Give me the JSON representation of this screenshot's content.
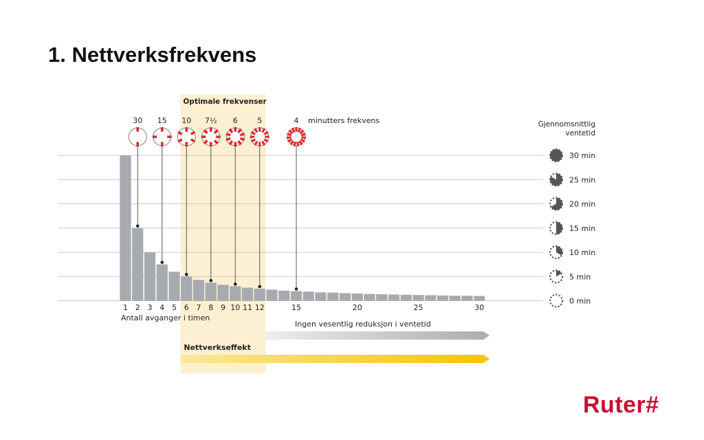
{
  "slide": {
    "title": "1. Nettverksfrekvens"
  },
  "brand": {
    "logo_text": "Ruter#",
    "color": "#c8102e"
  },
  "colors": {
    "bar": "#a7abaf",
    "optimal_band": "#fdf0d2",
    "grid": "#c8c8c8",
    "accent_red": "#e2272a",
    "network_arrow": "#f5c400",
    "no_reduction_arrow": "#b9bcbf"
  },
  "chart_data": {
    "type": "bar",
    "title": "",
    "xlabel": "Antall avganger i timen",
    "ylabel": "Gjennomsnittlig ventetid",
    "x": [
      1,
      2,
      3,
      4,
      5,
      6,
      7,
      8,
      9,
      10,
      11,
      12,
      13,
      14,
      15,
      16,
      17,
      18,
      19,
      20,
      21,
      22,
      23,
      24,
      25,
      26,
      27,
      28,
      29,
      30
    ],
    "values": [
      30,
      15,
      10,
      7.5,
      6,
      5,
      4.3,
      3.75,
      3.3,
      3,
      2.7,
      2.5,
      2.3,
      2.1,
      2,
      1.9,
      1.75,
      1.7,
      1.6,
      1.5,
      1.4,
      1.35,
      1.3,
      1.25,
      1.2,
      1.15,
      1.1,
      1.05,
      1.03,
      1
    ],
    "x_tick_labels": [
      "1",
      "2",
      "3",
      "4",
      "5",
      "6",
      "7",
      "8",
      "9",
      "10",
      "11",
      "12",
      "15",
      "20",
      "25",
      "30"
    ],
    "ylim": [
      0,
      30
    ],
    "y_tick_labels": [
      "30 min",
      "25 min",
      "20 min",
      "15 min",
      "10 min",
      "5 min",
      "0 min"
    ],
    "y_axis_title": [
      "Gjennomsnittlig",
      "ventetid"
    ],
    "grid": true,
    "optimal_band": {
      "label": "Optimale frekvenser",
      "from": 6,
      "to": 12
    },
    "frequency_markers": {
      "caption": "minutters frekvens",
      "items": [
        {
          "label": "30",
          "departures": 2
        },
        {
          "label": "15",
          "departures": 4
        },
        {
          "label": "10",
          "departures": 6
        },
        {
          "label": "7½",
          "departures": 8
        },
        {
          "label": "6",
          "departures": 10
        },
        {
          "label": "5",
          "departures": 12
        },
        {
          "label": "4",
          "departures": 15
        }
      ]
    },
    "arrows": [
      {
        "label": "Ingen vesentlig reduksjon i ventetid",
        "from": 12,
        "to": 30
      },
      {
        "label": "Nettverkseffekt",
        "from": 6,
        "to": 30
      }
    ]
  }
}
